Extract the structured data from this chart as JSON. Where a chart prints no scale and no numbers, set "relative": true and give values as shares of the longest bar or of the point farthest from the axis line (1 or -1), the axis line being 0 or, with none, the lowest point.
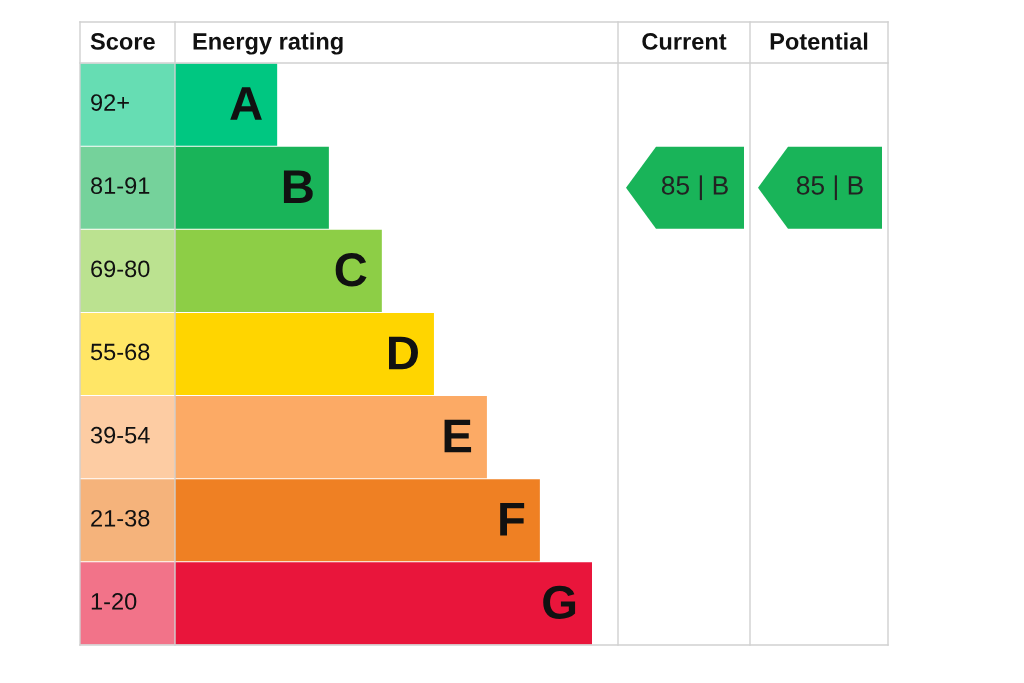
{
  "chart_data": {
    "type": "bar",
    "orientation": "horizontal",
    "relative": true,
    "categories": [
      "A",
      "B",
      "C",
      "D",
      "E",
      "F",
      "G"
    ],
    "values": [
      0.245,
      0.369,
      0.496,
      0.621,
      0.748,
      0.875,
      1.0
    ],
    "colors": [
      "#00c781",
      "#19b459",
      "#8dce46",
      "#ffd500",
      "#fcaa65",
      "#ef8023",
      "#e9153b"
    ],
    "annotations": [
      "Score",
      "Energy rating",
      "Current",
      "Potential",
      "92+",
      "81-91",
      "69-80",
      "55-68",
      "39-54",
      "21-38",
      "1-20",
      "85 | B",
      "85 | B"
    ]
  }
}
